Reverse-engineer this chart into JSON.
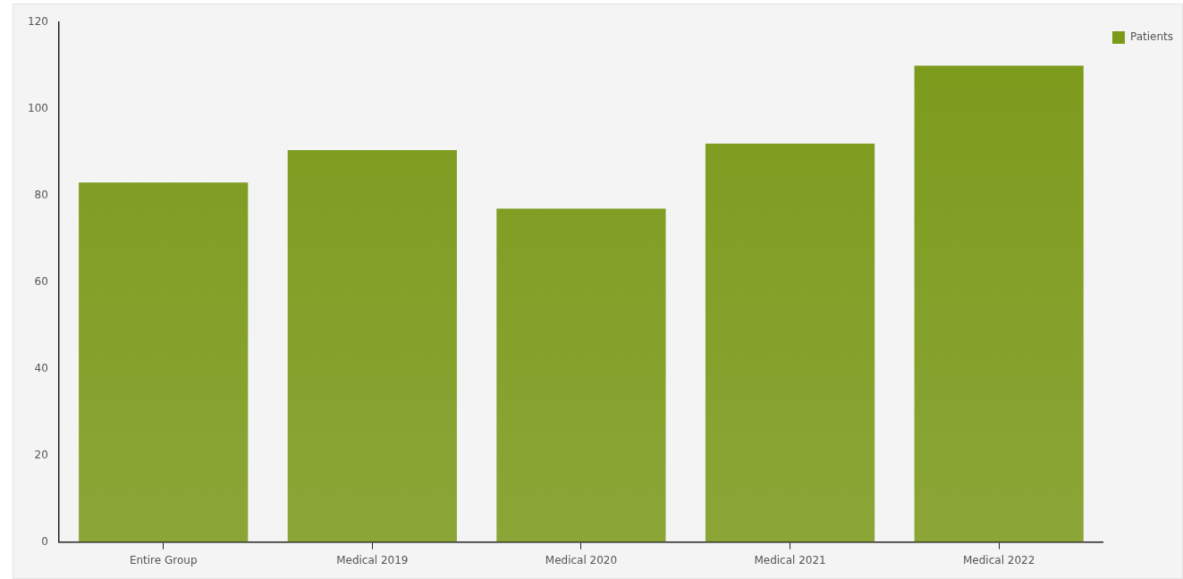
{
  "chart_data": {
    "type": "bar",
    "categories": [
      "Entire Group",
      "Medical 2019",
      "Medical 2020",
      "Medical 2021",
      "Medical 2022"
    ],
    "series": [
      {
        "name": "Patients",
        "color": "#7b9a1a",
        "values": [
          83,
          90.5,
          77,
          92,
          110
        ]
      }
    ],
    "ylim": [
      0,
      120
    ],
    "yticks": [
      0,
      20,
      40,
      60,
      80,
      100,
      120
    ],
    "grid": false,
    "legend": "top right"
  }
}
